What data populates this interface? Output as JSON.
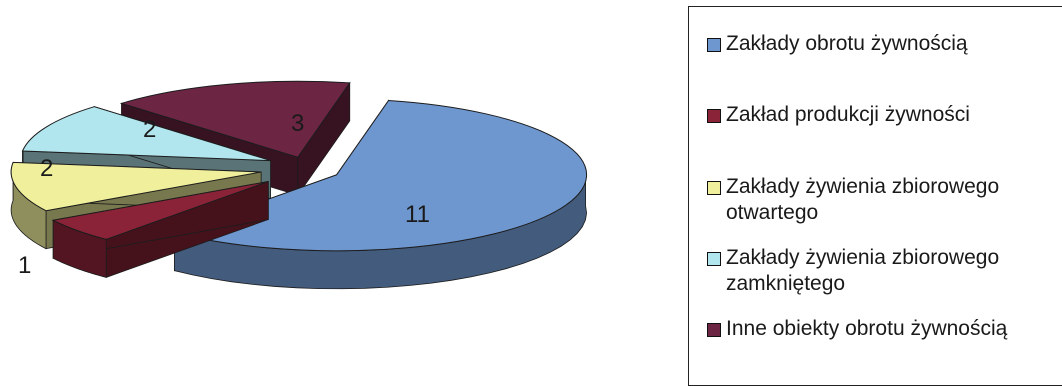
{
  "chart_data": {
    "type": "pie",
    "title": "",
    "slices": [
      {
        "label": "Zakłady obrotu żywnością",
        "value": 11,
        "color": "#6f97cf"
      },
      {
        "label": "Zakład produkcji żywności",
        "value": 1,
        "color": "#8a2338"
      },
      {
        "label": "Zakłady żywienia zbiorowego otwartego",
        "value": 2,
        "color": "#efef9c"
      },
      {
        "label": "Zakłady żywienia zbiorowego zamkniętego",
        "value": 2,
        "color": "#b2e6ee"
      },
      {
        "label": "Inne obiekty obrotu żywnością",
        "value": 3,
        "color": "#6d2544"
      }
    ],
    "data_labels": [
      "11",
      "1",
      "2",
      "2",
      "3"
    ],
    "legend": {
      "placement": "right",
      "entries": [
        "Zakłady obrotu żywnością",
        "Zakład produkcji żywności",
        "Zakłady żywienia zbiorowego\notwartego",
        "Zakłady żywienia zbiorowego\nzamkniętego",
        "Inne obiekty obrotu żywnością"
      ]
    },
    "style": "3d-exploded"
  }
}
